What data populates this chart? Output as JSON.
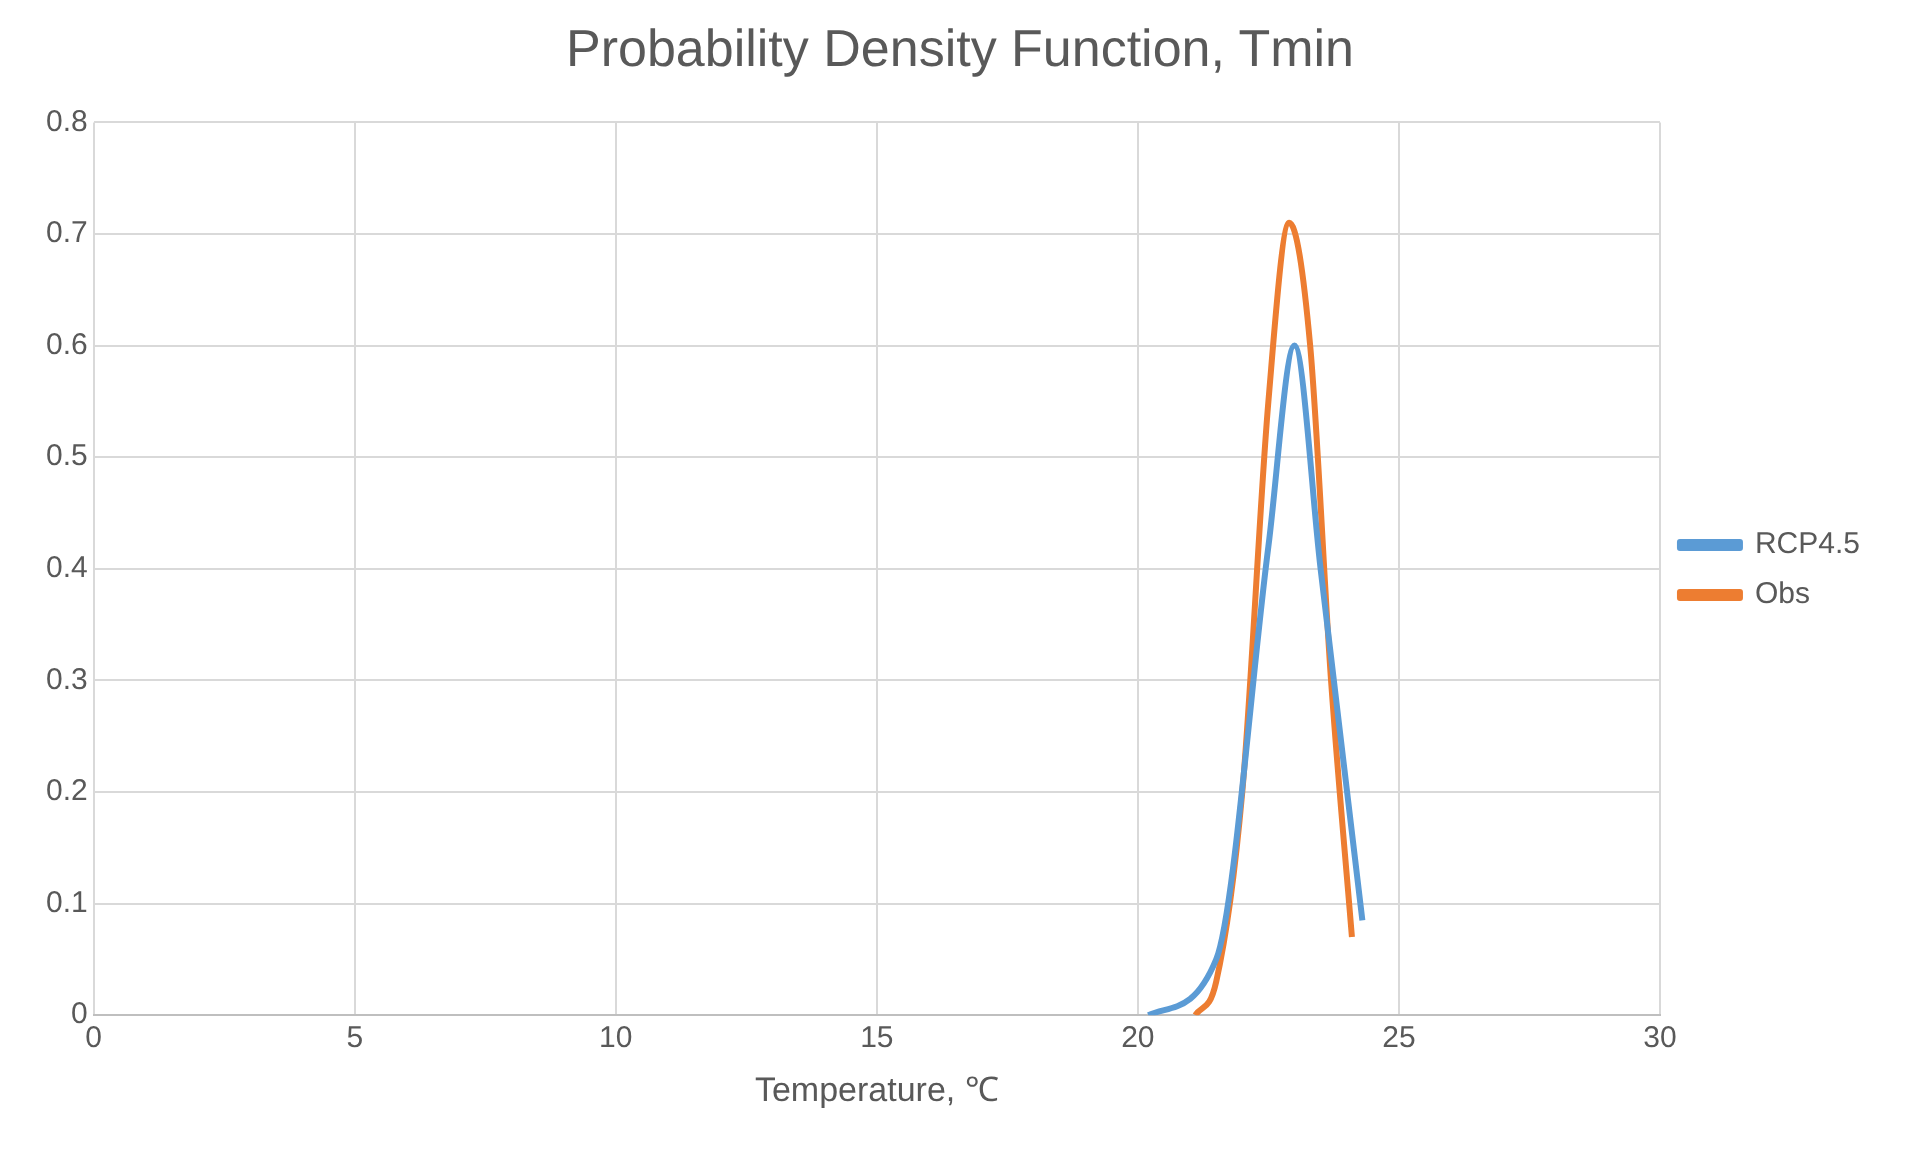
{
  "chart_data": {
    "type": "line",
    "title": "Probability Density Function, Tmin",
    "xlabel": "Temperature, ℃",
    "xlim": [
      0,
      30
    ],
    "xticks": [
      0,
      5,
      10,
      15,
      20,
      25,
      30
    ],
    "ylim": [
      0,
      0.8
    ],
    "yticks": [
      0,
      0.1,
      0.2,
      0.3,
      0.4,
      0.5,
      0.6,
      0.7,
      0.8
    ],
    "grid": true,
    "legend": "right",
    "marker": "none",
    "series": [
      {
        "name": "RCP4.5",
        "color": "#5b9bd5",
        "x": [
          20.2,
          21.5,
          22.5,
          23.0,
          23.5,
          24.3
        ],
        "values": [
          0,
          0.05,
          0.42,
          0.6,
          0.4,
          0.085
        ]
      },
      {
        "name": "Obs",
        "color": "#ed7d31",
        "x": [
          21.1,
          21.5,
          22.0,
          22.5,
          22.9,
          23.3,
          23.7,
          24.1
        ],
        "values": [
          0,
          0.03,
          0.2,
          0.55,
          0.71,
          0.6,
          0.3,
          0.07
        ]
      }
    ]
  }
}
